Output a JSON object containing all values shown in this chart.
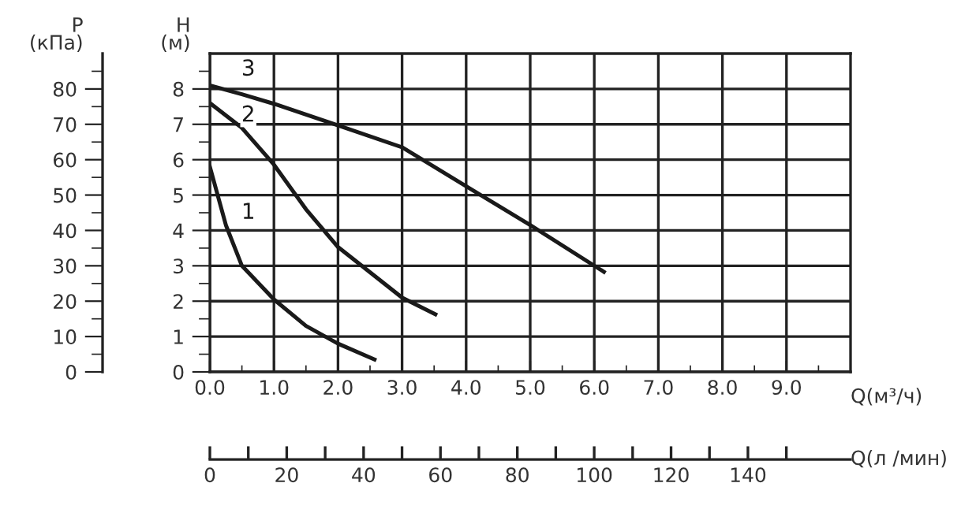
{
  "chart_data": {
    "type": "line",
    "xlabel": "Q(м³/ч)",
    "ylabel": "H\n(м)",
    "y2label": "P\n(кПа)",
    "x2label": "Q(л /мин)",
    "series": [
      {
        "name": "3",
        "color": "#1a1a1a",
        "x": [
          0,
          0.5,
          1,
          2,
          3,
          4,
          5,
          6.15
        ],
        "values": [
          8.1,
          7.85,
          7.58,
          6.97,
          6.35,
          5.25,
          4.15,
          2.83
        ]
      },
      {
        "name": "2",
        "color": "#1a1a1a",
        "x": [
          0,
          0.5,
          1,
          1.5,
          2,
          3,
          3.52
        ],
        "values": [
          7.6,
          6.9,
          5.86,
          4.6,
          3.53,
          2.1,
          1.63
        ]
      },
      {
        "name": "1",
        "color": "#1a1a1a",
        "x": [
          0,
          0.25,
          0.5,
          1,
          1.5,
          2,
          2.57
        ],
        "values": [
          5.8,
          4.15,
          3.0,
          2.05,
          1.3,
          0.8,
          0.35
        ]
      }
    ],
    "xlim": [
      0,
      10
    ],
    "ylim": [
      0,
      9
    ],
    "y2lim": [
      0,
      90
    ],
    "x2lim": [
      0,
      166.7
    ],
    "xticks": [
      {
        "value": 0,
        "label": "0.0"
      },
      {
        "value": 0.5,
        "label": null
      },
      {
        "value": 1,
        "label": "1.0"
      },
      {
        "value": 1.5,
        "label": null
      },
      {
        "value": 2,
        "label": "2.0"
      },
      {
        "value": 2.5,
        "label": null
      },
      {
        "value": 3,
        "label": "3.0"
      },
      {
        "value": 3.5,
        "label": null
      },
      {
        "value": 4,
        "label": "4.0"
      },
      {
        "value": 4.5,
        "label": null
      },
      {
        "value": 5,
        "label": "5.0"
      },
      {
        "value": 5.5,
        "label": null
      },
      {
        "value": 6,
        "label": "6.0"
      },
      {
        "value": 6.5,
        "label": null
      },
      {
        "value": 7,
        "label": "7.0"
      },
      {
        "value": 7.5,
        "label": null
      },
      {
        "value": 8,
        "label": "8.0"
      },
      {
        "value": 8.5,
        "label": null
      },
      {
        "value": 9,
        "label": "9.0"
      },
      {
        "value": 9.5,
        "label": null
      }
    ],
    "yticks": [
      0,
      {
        "value": 0.5,
        "label": null
      },
      1,
      {
        "value": 1.5,
        "label": null
      },
      2,
      {
        "value": 2.5,
        "label": null
      },
      3,
      {
        "value": 3.5,
        "label": null
      },
      4,
      {
        "value": 4.5,
        "label": null
      },
      5,
      {
        "value": 5.5,
        "label": null
      },
      6,
      {
        "value": 6.5,
        "label": null
      },
      7,
      {
        "value": 7.5,
        "label": null
      },
      8,
      {
        "value": 8.5,
        "label": null
      }
    ],
    "y2ticks": [
      0,
      {
        "value": 5,
        "label": null
      },
      10,
      {
        "value": 15,
        "label": null
      },
      20,
      {
        "value": 25,
        "label": null
      },
      30,
      {
        "value": 35,
        "label": null
      },
      40,
      {
        "value": 45,
        "label": null
      },
      50,
      {
        "value": 55,
        "label": null
      },
      60,
      {
        "value": 65,
        "label": null
      },
      70,
      {
        "value": 75,
        "label": null
      },
      80,
      {
        "value": 85,
        "label": null
      }
    ],
    "x2ticks": [
      0,
      20,
      40,
      60,
      80,
      100,
      120,
      140
    ],
    "grid": true,
    "legend": false,
    "marker": "none",
    "line_style": "solid"
  }
}
